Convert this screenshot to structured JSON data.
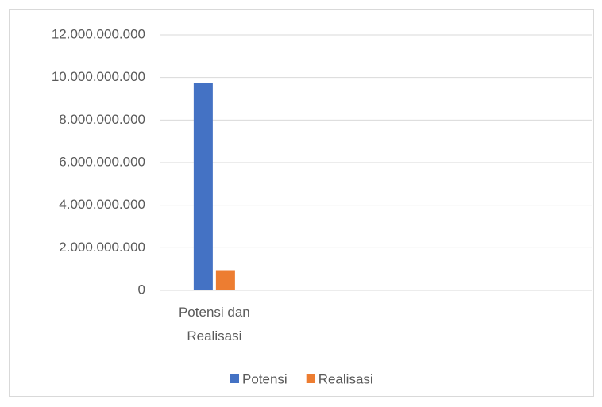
{
  "chart_data": {
    "type": "bar",
    "categories": [
      "Potensi dan Realisasi",
      null,
      null,
      null
    ],
    "series": [
      {
        "name": "Potensi",
        "color": "#4472c4",
        "values": [
          9750000000,
          null,
          null,
          null
        ]
      },
      {
        "name": "Realisasi",
        "color": "#ed7d31",
        "values": [
          950000000,
          null,
          null,
          null
        ]
      }
    ],
    "ylim": [
      0,
      12000000000
    ],
    "yticks": [
      0,
      {
        "value": 2000000000,
        "label": "2.000.000.000"
      },
      {
        "value": 4000000000,
        "label": "4.000.000.000"
      },
      {
        "value": 6000000000,
        "label": "6.000.000.000"
      },
      {
        "value": 8000000000,
        "label": "8.000.000.000"
      },
      {
        "value": 10000000000,
        "label": "10.000.000.000"
      },
      {
        "value": 12000000000,
        "label": "12.000.000.000"
      }
    ],
    "grid": true,
    "legend": "bottom"
  }
}
